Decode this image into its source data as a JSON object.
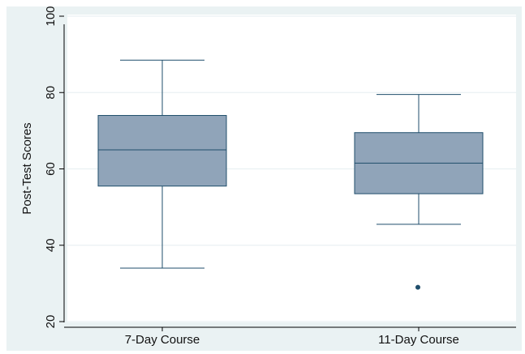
{
  "chart_data": {
    "type": "box",
    "title": "",
    "xlabel": "",
    "ylabel": "Post-Test Scores",
    "ylim": [
      20,
      100
    ],
    "yticks": [
      20,
      40,
      60,
      80,
      100
    ],
    "grid": true,
    "categories": [
      "7-Day Course",
      "11-Day Course"
    ],
    "boxes": [
      {
        "category": "7-Day Course",
        "whisker_low": 34,
        "q1": 55.5,
        "median": 65,
        "q3": 74,
        "whisker_high": 88.5,
        "outliers": []
      },
      {
        "category": "11-Day Course",
        "whisker_low": 45.5,
        "q1": 53.5,
        "median": 61.5,
        "q3": 69.5,
        "whisker_high": 79.5,
        "outliers": [
          29
        ]
      }
    ],
    "colors": {
      "outer_background": "#eaf2f3",
      "plot_background": "#ffffff",
      "box_fill": "#90a4b9",
      "box_stroke": "#1f4e6b",
      "grid": "#e6eef0",
      "axis": "#000000",
      "outlier": "#1f4e6b"
    }
  }
}
